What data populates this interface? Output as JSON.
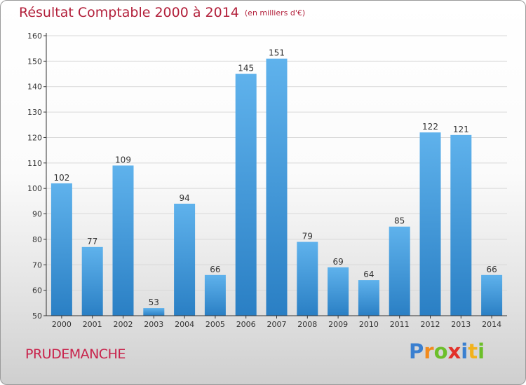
{
  "header": {
    "title": "Résultat Comptable 2000 à 2014",
    "unit": "(en milliers d'€)"
  },
  "commune": "PRUDEMANCHE",
  "logo": {
    "letters": [
      {
        "ch": "P",
        "color": "#3a7fd0"
      },
      {
        "ch": "r",
        "color": "#f28a1c"
      },
      {
        "ch": "o",
        "color": "#6cbf2a"
      },
      {
        "ch": "x",
        "color": "#e2312a"
      },
      {
        "ch": "i",
        "color": "#3a7fd0"
      },
      {
        "ch": "t",
        "color": "#f2b21c"
      },
      {
        "ch": "i",
        "color": "#6cbf2a"
      }
    ]
  },
  "colors": {
    "bar_top": "#5fb2ec",
    "bar_bottom": "#2a7fc4",
    "axis": "#333333",
    "grid": "#d8d8d8"
  },
  "chart_data": {
    "type": "bar",
    "title": "Résultat Comptable 2000 à 2014",
    "xlabel": "",
    "ylabel": "",
    "ylim": [
      50,
      160
    ],
    "yticks": [
      50,
      60,
      70,
      80,
      90,
      100,
      110,
      120,
      130,
      140,
      150,
      160
    ],
    "grid": true,
    "categories": [
      "2000",
      "2001",
      "2002",
      "2003",
      "2004",
      "2005",
      "2006",
      "2007",
      "2008",
      "2009",
      "2010",
      "2011",
      "2012",
      "2013",
      "2014"
    ],
    "values": [
      102,
      77,
      109,
      53,
      94,
      66,
      145,
      151,
      79,
      69,
      64,
      85,
      122,
      121,
      66
    ]
  }
}
